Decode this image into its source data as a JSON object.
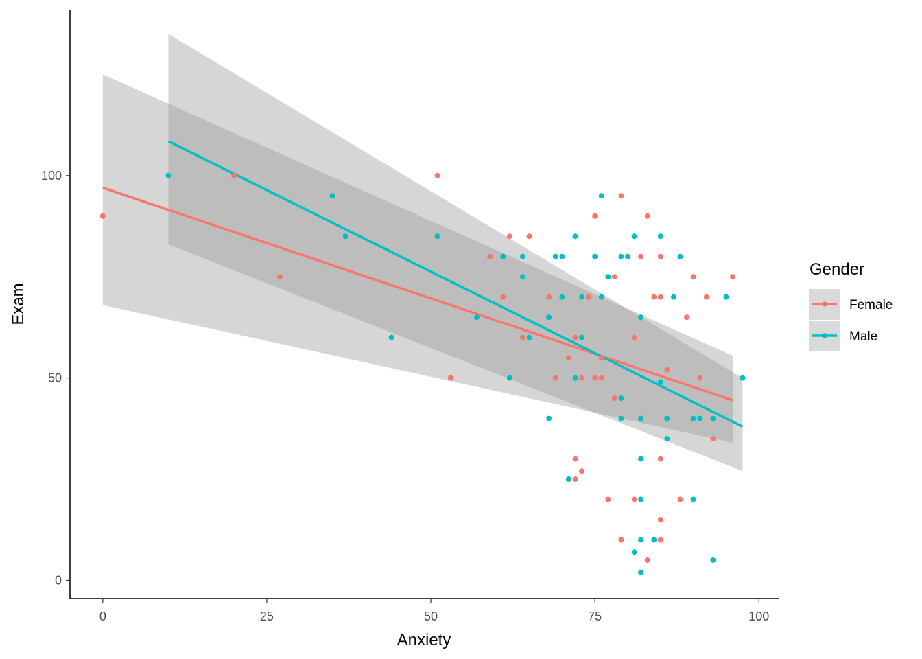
{
  "chart_data": {
    "type": "scatter",
    "xlabel": "Anxiety",
    "ylabel": "Exam",
    "xlim": [
      -5,
      103
    ],
    "ylim": [
      -4.5,
      141
    ],
    "x_ticks": [
      0,
      25,
      50,
      75,
      100
    ],
    "y_ticks": [
      0,
      50,
      100
    ],
    "grid": false,
    "legend": {
      "title": "Gender",
      "position": "right",
      "entries": [
        "Female",
        "Male"
      ]
    },
    "series": [
      {
        "name": "Female",
        "color": "#F8766D",
        "points": [
          [
            0,
            90
          ],
          [
            20,
            100
          ],
          [
            27,
            75
          ],
          [
            51,
            100
          ],
          [
            53,
            50
          ],
          [
            59,
            80
          ],
          [
            61,
            70
          ],
          [
            62,
            85
          ],
          [
            64,
            60
          ],
          [
            65,
            85
          ],
          [
            68,
            70
          ],
          [
            69,
            50
          ],
          [
            71,
            55
          ],
          [
            72,
            60
          ],
          [
            72,
            30
          ],
          [
            72,
            25
          ],
          [
            73,
            27
          ],
          [
            73,
            50
          ],
          [
            74,
            70
          ],
          [
            75,
            90
          ],
          [
            75,
            50
          ],
          [
            76,
            50
          ],
          [
            76,
            55
          ],
          [
            77,
            20
          ],
          [
            78,
            75
          ],
          [
            78,
            45
          ],
          [
            79,
            95
          ],
          [
            79,
            10
          ],
          [
            81,
            60
          ],
          [
            81,
            20
          ],
          [
            82,
            80
          ],
          [
            83,
            90
          ],
          [
            83,
            5
          ],
          [
            84,
            70
          ],
          [
            85,
            80
          ],
          [
            85,
            70
          ],
          [
            85,
            30
          ],
          [
            85,
            15
          ],
          [
            85,
            10
          ],
          [
            86,
            52
          ],
          [
            88,
            20
          ],
          [
            89,
            65
          ],
          [
            90,
            75
          ],
          [
            91,
            50
          ],
          [
            92,
            70
          ],
          [
            93,
            35
          ],
          [
            96,
            75
          ]
        ],
        "fit": {
          "x": [
            0,
            96
          ],
          "y": [
            97,
            44.5
          ],
          "ci_lower": [
            68,
            34
          ],
          "ci_upper": [
            125,
            55.5
          ]
        }
      },
      {
        "name": "Male",
        "color": "#00BFC4",
        "points": [
          [
            10,
            100
          ],
          [
            35,
            95
          ],
          [
            37,
            85
          ],
          [
            44,
            60
          ],
          [
            51,
            85
          ],
          [
            57,
            65
          ],
          [
            61,
            80
          ],
          [
            62,
            50
          ],
          [
            64,
            80
          ],
          [
            64,
            75
          ],
          [
            65,
            60
          ],
          [
            68,
            65
          ],
          [
            68,
            40
          ],
          [
            69,
            80
          ],
          [
            70,
            80
          ],
          [
            70,
            70
          ],
          [
            71,
            25
          ],
          [
            72,
            85
          ],
          [
            72,
            50
          ],
          [
            73,
            60
          ],
          [
            73,
            70
          ],
          [
            75,
            80
          ],
          [
            76,
            95
          ],
          [
            76,
            70
          ],
          [
            77,
            75
          ],
          [
            79,
            80
          ],
          [
            79,
            45
          ],
          [
            79,
            40
          ],
          [
            80,
            80
          ],
          [
            81,
            85
          ],
          [
            81,
            7
          ],
          [
            82,
            65
          ],
          [
            82,
            40
          ],
          [
            82,
            30
          ],
          [
            82,
            20
          ],
          [
            82,
            10
          ],
          [
            82,
            2
          ],
          [
            84,
            10
          ],
          [
            85,
            85
          ],
          [
            85,
            49
          ],
          [
            86,
            40
          ],
          [
            86,
            35
          ],
          [
            87,
            70
          ],
          [
            88,
            80
          ],
          [
            90,
            40
          ],
          [
            90,
            20
          ],
          [
            91,
            40
          ],
          [
            93,
            5
          ],
          [
            93,
            40
          ],
          [
            95,
            70
          ],
          [
            97.5,
            50
          ]
        ],
        "fit": {
          "x": [
            10,
            97.5
          ],
          "y": [
            108.5,
            38
          ],
          "ci_lower": [
            83,
            27
          ],
          "ci_upper": [
            135,
            50
          ]
        }
      }
    ]
  }
}
